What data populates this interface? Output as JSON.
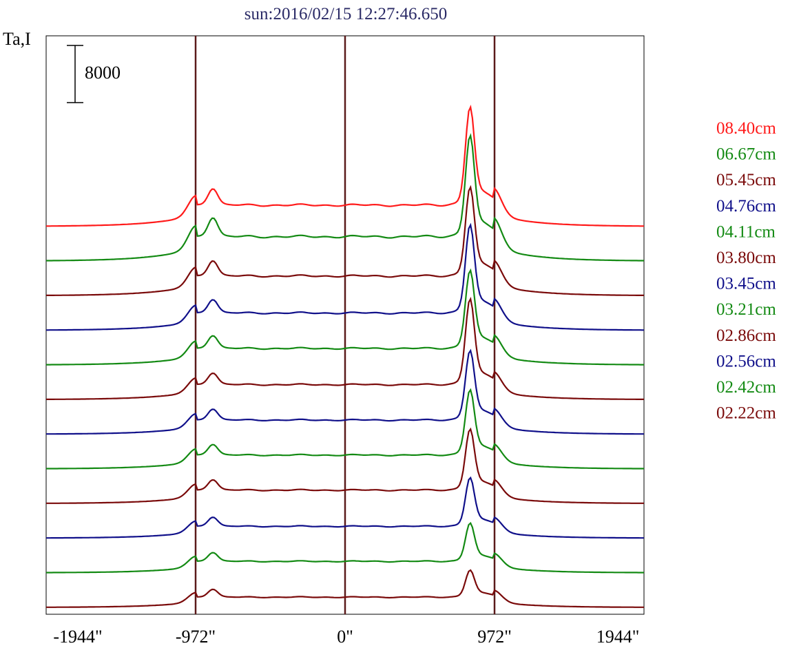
{
  "chart_data": {
    "type": "line",
    "title": "sun:2016/02/15 12:27:46.650",
    "ylabel": "Ta,I",
    "xlabel": "",
    "scale_bar_label": "8000",
    "scale_bar_value": 8000,
    "xlim": [
      -1944,
      1944
    ],
    "x_ticks": [
      {
        "value": -1944,
        "label": "-1944\""
      },
      {
        "value": -972,
        "label": "-972\""
      },
      {
        "value": 0,
        "label": "0\""
      },
      {
        "value": 972,
        "label": "972\""
      },
      {
        "value": 1944,
        "label": "1944\""
      }
    ],
    "vertical_markers": [
      -972,
      0,
      972
    ],
    "marker_color": "#5a1a1a",
    "grid": false,
    "legend_position": "right",
    "series": [
      {
        "name": "08.40cm",
        "color": "#ff1a1a",
        "offset": 11,
        "peak": 15400,
        "limb_peak": 5400
      },
      {
        "name": "06.67cm",
        "color": "#138a13",
        "offset": 10,
        "peak": 16200,
        "limb_peak": 6200
      },
      {
        "name": "05.45cm",
        "color": "#7a0a0a",
        "offset": 9,
        "peak": 14000,
        "limb_peak": 5000
      },
      {
        "name": "04.76cm",
        "color": "#10108a",
        "offset": 8,
        "peak": 13600,
        "limb_peak": 4400
      },
      {
        "name": "04.11cm",
        "color": "#138a13",
        "offset": 7,
        "peak": 12200,
        "limb_peak": 4200
      },
      {
        "name": "03.80cm",
        "color": "#7a0a0a",
        "offset": 6,
        "peak": 13000,
        "limb_peak": 3800
      },
      {
        "name": "03.45cm",
        "color": "#10108a",
        "offset": 5,
        "peak": 10800,
        "limb_peak": 3600
      },
      {
        "name": "03.21cm",
        "color": "#138a13",
        "offset": 4,
        "peak": 10200,
        "limb_peak": 3500
      },
      {
        "name": "02.86cm",
        "color": "#7a0a0a",
        "offset": 3,
        "peak": 9600,
        "limb_peak": 3400
      },
      {
        "name": "02.56cm",
        "color": "#10108a",
        "offset": 2,
        "peak": 7800,
        "limb_peak": 3000
      },
      {
        "name": "02.42cm",
        "color": "#138a13",
        "offset": 1,
        "peak": 6400,
        "limb_peak": 2900
      },
      {
        "name": "02.22cm",
        "color": "#7a0a0a",
        "offset": 0,
        "peak": 4800,
        "limb_peak": 2600
      }
    ],
    "profile_note_units": "Ta,I"
  }
}
